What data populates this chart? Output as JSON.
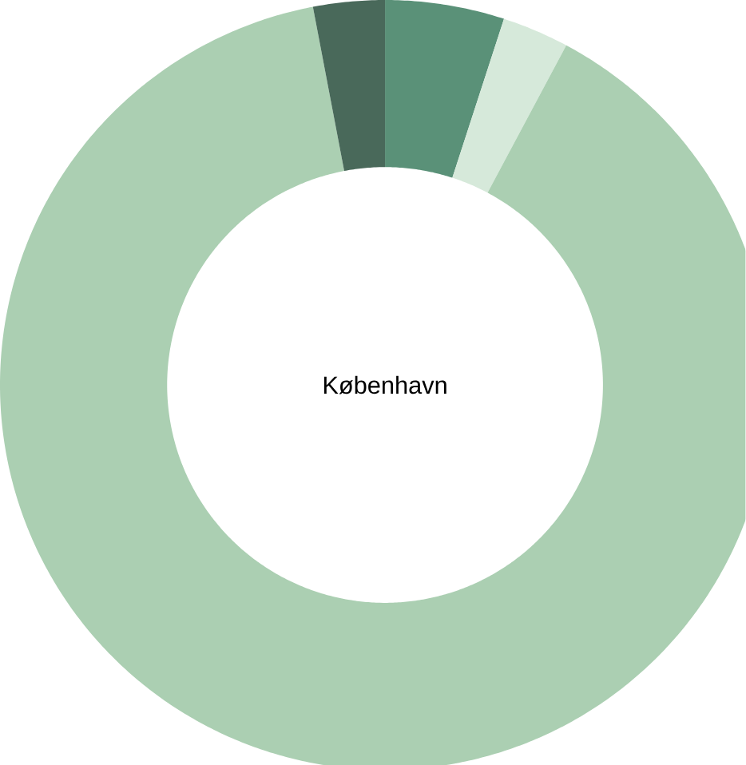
{
  "chart_data": {
    "type": "donut",
    "title": "København",
    "categories": [
      null,
      null,
      null,
      null
    ],
    "values": [
      5,
      2.8,
      89.2,
      3
    ],
    "colors": [
      "#5a9178",
      "#d6e9da",
      "#abcfb2",
      "#49695a"
    ]
  }
}
